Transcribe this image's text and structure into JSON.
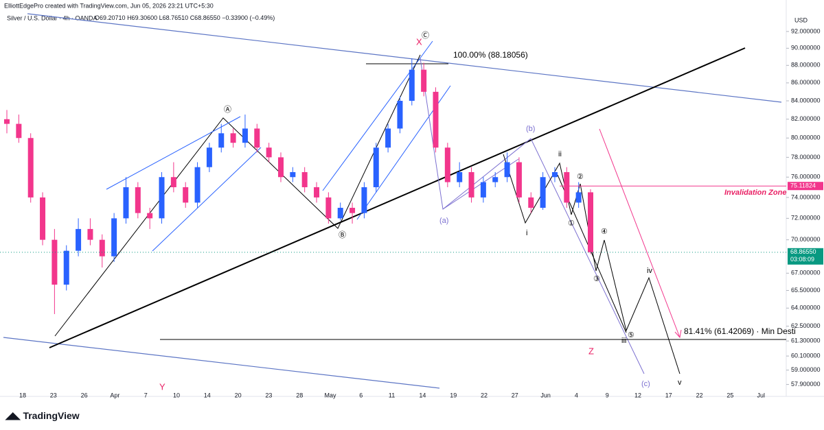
{
  "header": {
    "credit": "ElliottEdgePro created with TradingView.com, Jun 05, 2026 23:21 UTC+5:30",
    "symbol": "Silver / U.S. Dollar · 4h · OANDA",
    "open": "O69.20710",
    "high": "H69.30600",
    "low": "L68.76510",
    "close": "C68.86550",
    "change": "−0.33900 (−0.49%)"
  },
  "chart_data": {
    "type": "candlestick",
    "currency": "USD",
    "log_scale": true,
    "categories": [
      "18",
      "23",
      "26",
      "Apr",
      "7",
      "10",
      "14",
      "20",
      "23",
      "28",
      "May",
      "6",
      "11",
      "14",
      "19",
      "22",
      "27",
      "Jun",
      "4",
      "9",
      "12",
      "17",
      "22",
      "25",
      "Jul"
    ],
    "open": [
      82,
      81.5,
      80,
      74,
      70,
      66,
      69,
      71,
      70,
      68.5,
      72,
      75,
      72.5,
      72,
      76,
      75,
      73.5,
      77,
      79,
      80.5,
      79.5,
      81,
      79,
      78,
      76,
      76.5,
      75,
      74,
      72,
      73,
      72.5,
      75,
      79,
      81,
      84,
      87.5,
      85,
      79,
      75.5,
      76.5,
      74,
      75.5,
      76,
      77.5,
      74,
      73,
      76,
      76.5,
      73.5,
      74.5
    ],
    "high": [
      83,
      82.5,
      80.5,
      74.5,
      71,
      69.5,
      72,
      72,
      70.5,
      72.5,
      76,
      75.5,
      73,
      76.5,
      77.5,
      75.5,
      77.5,
      79.5,
      81.5,
      81,
      82.5,
      81.5,
      79.5,
      78.5,
      77,
      77,
      75.5,
      74.5,
      73.5,
      73.5,
      75.5,
      79.5,
      81.5,
      84.5,
      88.8,
      88.3,
      85.5,
      79.5,
      77.5,
      77,
      76,
      76.5,
      78.5,
      78,
      74.5,
      76.5,
      77,
      77,
      75.5,
      74.8
    ],
    "low": [
      80.5,
      79.5,
      73.5,
      69.5,
      63.5,
      65.5,
      68.5,
      69.5,
      67.5,
      68,
      71.5,
      72,
      71,
      71.5,
      74.5,
      73,
      73,
      76.5,
      78.5,
      79,
      79,
      78.5,
      77.5,
      75.5,
      75.5,
      74.5,
      73.5,
      71.5,
      71.8,
      71.5,
      72,
      74.5,
      78.5,
      80.5,
      83.5,
      84.5,
      78.5,
      75,
      75,
      73.5,
      73.5,
      75,
      75.5,
      73.5,
      72.5,
      72.8,
      75.5,
      73,
      73,
      68.7
    ],
    "close": [
      81.5,
      80,
      74,
      70,
      66,
      69,
      71,
      70,
      68.5,
      72,
      75,
      72.5,
      72,
      76,
      75,
      73.5,
      77,
      79,
      80.5,
      79.5,
      81,
      79,
      78,
      76,
      76.5,
      75,
      74,
      72,
      73,
      72.5,
      75,
      79,
      81,
      84,
      87.5,
      85,
      79,
      75.5,
      76.5,
      74,
      75.5,
      76,
      77.5,
      74,
      73,
      76,
      76.5,
      73.5,
      74.5,
      68.8655
    ],
    "up_color": "#2962ff",
    "down_color": "#f2368c",
    "ylim": [
      57.0,
      94.0
    ],
    "yticks": [
      {
        "value": 92,
        "label": "92.000000"
      },
      {
        "value": 90,
        "label": "90.000000"
      },
      {
        "value": 88,
        "label": "88.000000"
      },
      {
        "value": 86,
        "label": "86.000000"
      },
      {
        "value": 84,
        "label": "84.000000"
      },
      {
        "value": 82,
        "label": "82.000000"
      },
      {
        "value": 80,
        "label": "80.000000"
      },
      {
        "value": 78,
        "label": "78.000000"
      },
      {
        "value": 76,
        "label": "76.000000"
      },
      {
        "value": 74,
        "label": "74.000000"
      },
      {
        "value": 72,
        "label": "72.000000"
      },
      {
        "value": 70,
        "label": "70.000000"
      },
      {
        "value": 67,
        "label": "67.000000"
      },
      {
        "value": 65.5,
        "label": "65.500000"
      },
      {
        "value": 64,
        "label": "64.000000"
      },
      {
        "value": 62.5,
        "label": "62.500000"
      },
      {
        "value": 61.3,
        "label": "61.300000"
      },
      {
        "value": 60.1,
        "label": "60.100000"
      },
      {
        "value": 59,
        "label": "59.000000"
      },
      {
        "value": 57.9,
        "label": "57.900000"
      }
    ],
    "levels": [
      {
        "value": 75.11824,
        "label": "75.11824",
        "color": "#f2368c"
      },
      {
        "value": 68.8655,
        "label": "68.86550",
        "color": "#089981"
      }
    ],
    "countdown": "03:08:09",
    "annotations": [
      "X",
      "Ⓒ",
      "100.00% (88.18056)",
      "Ⓐ",
      "Ⓑ",
      "(b)",
      "(a)",
      "ii",
      "i",
      "②",
      "①",
      "④",
      "③",
      "⑤",
      "iii",
      "iv",
      "v",
      "(c)",
      "Z",
      "Y",
      "Invalidation Zone",
      "81.41% (61.42069) · Min Desti"
    ]
  },
  "footer": {
    "brand": "TradingView"
  }
}
